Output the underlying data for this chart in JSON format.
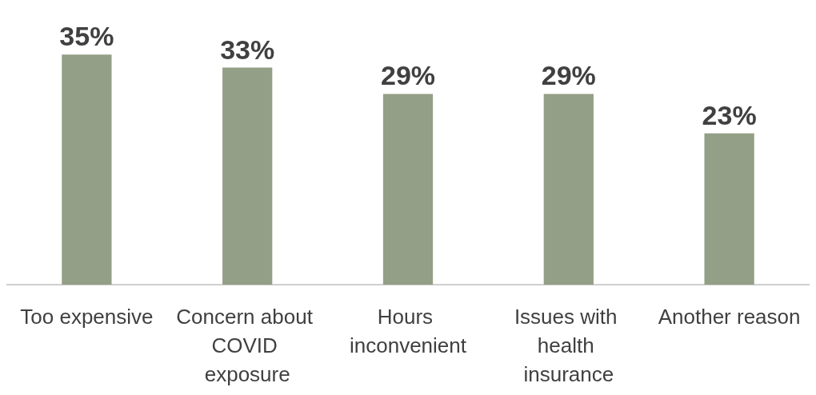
{
  "chart_data": {
    "type": "bar",
    "categories": [
      "Too expensive",
      "Concern about COVID exposure",
      "Hours inconvenient",
      "Issues with health insurance",
      "Another reason"
    ],
    "values": [
      35,
      33,
      29,
      29,
      23
    ],
    "value_labels": [
      "35%",
      "33%",
      "29%",
      "29%",
      "23%"
    ],
    "color": "#939f86",
    "grid": false
  }
}
